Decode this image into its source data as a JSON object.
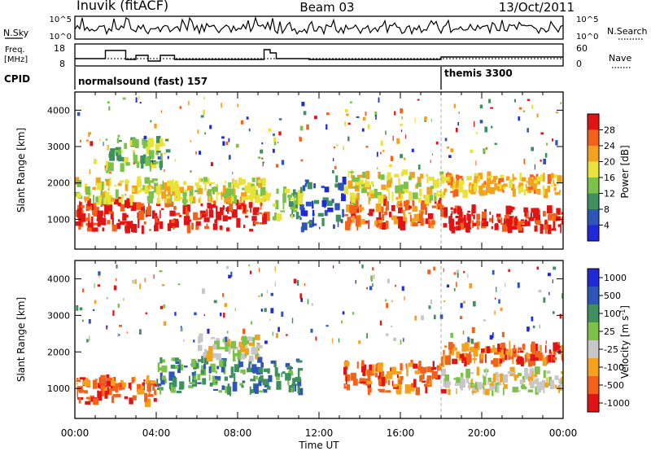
{
  "header": {
    "station": "Inuvik (fitACF)",
    "beam": "Beam 03",
    "date": "13/Oct/2011"
  },
  "sky_panel": {
    "left_label": "N.Sky",
    "right_label": "N.Search",
    "left_ticks": [
      "10^5",
      "10^0"
    ],
    "right_ticks": [
      "10^5",
      "10^0"
    ]
  },
  "freq_panel": {
    "left_label_top": "Freq.",
    "left_label_bottom": "[MHz]",
    "left_ticks": [
      "18",
      "8"
    ],
    "right_label": "Nave",
    "right_ticks": [
      "60",
      "0"
    ]
  },
  "cpid_panel": {
    "label": "CPID",
    "segments": [
      {
        "text": "normalsound (fast) 157",
        "start": "00:00"
      },
      {
        "text": "themis 3300",
        "start": "18:00"
      }
    ]
  },
  "colors": {
    "power": [
      "#1f2ad6",
      "#2f55b8",
      "#3f8f5f",
      "#7cc24a",
      "#e8e23a",
      "#f3a21f",
      "#f2621a",
      "#e01414"
    ],
    "velocity": [
      "#1f2ad6",
      "#2f55b8",
      "#3f8f5f",
      "#7cc24a",
      "#c7c7c7",
      "#f3a21f",
      "#f2621a",
      "#e01414"
    ]
  },
  "chart_data": [
    {
      "type": "heatmap",
      "name": "Power",
      "ylabel": "Slant Range [km]",
      "ylim": [
        180,
        4500
      ],
      "yticks": [
        "1000",
        "2000",
        "3000",
        "4000"
      ],
      "colorbar_label": "Power [dB]",
      "colorbar_ticks": [
        "4",
        "8",
        "12",
        "16",
        "20",
        "24",
        "28"
      ],
      "colorbar_range": [
        0,
        32
      ],
      "regions": [
        {
          "t": [
            0.0,
            9.4
          ],
          "r": [
            700,
            1500
          ],
          "v": 28
        },
        {
          "t": [
            0.0,
            9.4
          ],
          "r": [
            1500,
            2100
          ],
          "v": 18
        },
        {
          "t": [
            9.4,
            11.0
          ],
          "r": [
            1000,
            1800
          ],
          "v": 12
        },
        {
          "t": [
            11.0,
            13.2
          ],
          "r": [
            700,
            2200
          ],
          "v": 6
        },
        {
          "t": [
            13.2,
            18.0
          ],
          "r": [
            800,
            1500
          ],
          "v": 26
        },
        {
          "t": [
            13.2,
            18.0
          ],
          "r": [
            1500,
            2300
          ],
          "v": 16
        },
        {
          "t": [
            18.0,
            24.0
          ],
          "r": [
            700,
            1300
          ],
          "v": 28
        },
        {
          "t": [
            18.0,
            24.0
          ],
          "r": [
            1700,
            2200
          ],
          "v": 22
        },
        {
          "t": [
            1.5,
            4.5
          ],
          "r": [
            2400,
            3200
          ],
          "v": 14
        }
      ]
    },
    {
      "type": "heatmap",
      "name": "Velocity",
      "ylabel": "Slant Range [km]",
      "ylim": [
        180,
        4500
      ],
      "yticks": [
        "1000",
        "2000",
        "3000",
        "4000"
      ],
      "xlabel": "Time UT",
      "xticks": [
        "00:00",
        "04:00",
        "08:00",
        "12:00",
        "16:00",
        "20:00",
        "00:00"
      ],
      "xlim": [
        0,
        24
      ],
      "colorbar_label": "Velocity [m s-1]",
      "colorbar_ticks": [
        "1000",
        "500",
        "100",
        "25",
        "-25",
        "-100",
        "-500",
        "-1000"
      ],
      "regions": [
        {
          "t": [
            0.0,
            4.0
          ],
          "r": [
            600,
            1300
          ],
          "v": -300
        },
        {
          "t": [
            4.0,
            9.4
          ],
          "r": [
            900,
            1800
          ],
          "v": 200
        },
        {
          "t": [
            6.0,
            9.0
          ],
          "r": [
            1800,
            2400
          ],
          "v": 0
        },
        {
          "t": [
            9.4,
            11.0
          ],
          "r": [
            900,
            1800
          ],
          "v": 300
        },
        {
          "t": [
            13.2,
            18.0
          ],
          "r": [
            900,
            1700
          ],
          "v": -200
        },
        {
          "t": [
            18.0,
            24.0
          ],
          "r": [
            900,
            1500
          ],
          "v": 0
        },
        {
          "t": [
            18.0,
            24.0
          ],
          "r": [
            1700,
            2200
          ],
          "v": -150
        }
      ]
    }
  ]
}
